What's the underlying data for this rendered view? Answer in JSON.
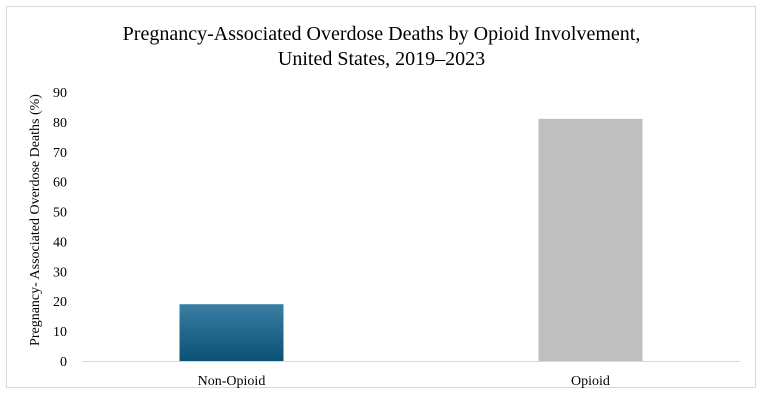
{
  "chart_data": {
    "type": "bar",
    "title_line1": "Pregnancy-Associated Overdose Deaths by Opioid Involvement,",
    "title_line2": "United States, 2019–2023",
    "xlabel": "",
    "ylabel": "Pregnancy- Associated Overdose  Deaths (%)",
    "categories": [
      "Non-Opioid",
      "Opioid"
    ],
    "values": [
      19,
      81
    ],
    "ylim": [
      0,
      90
    ],
    "yticks": [
      "0",
      "10",
      "20",
      "30",
      "40",
      "50",
      "60",
      "70",
      "80",
      "90"
    ],
    "grid": false,
    "legend": "none",
    "colors": {
      "non_opioid_top": "#3a7fa3",
      "non_opioid_bottom": "#0b5075",
      "opioid": "#bfbfbf",
      "axis": "#d9d9d9"
    }
  }
}
